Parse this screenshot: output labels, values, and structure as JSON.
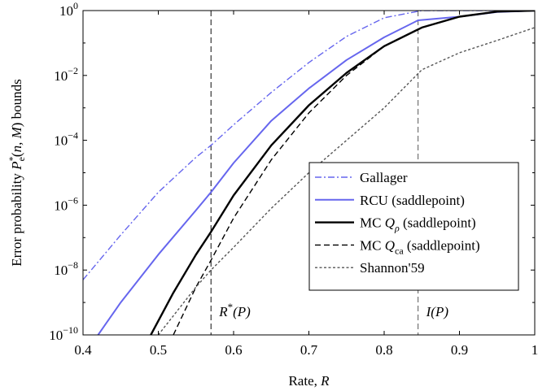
{
  "chart_data": {
    "type": "line",
    "xlabel": "Rate, R",
    "ylabel": "Error probability P*e(n, M) bounds",
    "xlim": [
      0.4,
      1.0
    ],
    "ylim": [
      1e-10,
      1
    ],
    "yscale": "log",
    "grid": false,
    "legend_position": "bottom-right",
    "x_ticks": [
      "0.4",
      "0.5",
      "0.6",
      "0.7",
      "0.8",
      "0.9",
      "1"
    ],
    "y_ticks": [
      {
        "base": "10",
        "exp": "0"
      },
      {
        "base": "10",
        "exp": "−2"
      },
      {
        "base": "10",
        "exp": "−4"
      },
      {
        "base": "10",
        "exp": "−6"
      },
      {
        "base": "10",
        "exp": "−8"
      },
      {
        "base": "10",
        "exp": "−10"
      }
    ],
    "series": [
      {
        "name": "Gallager",
        "color": "#6666ee",
        "dash": "dashdot",
        "x": [
          0.4,
          0.45,
          0.5,
          0.55,
          0.57,
          0.6,
          0.65,
          0.7,
          0.75,
          0.8,
          0.85,
          0.9,
          1.0
        ],
        "y": [
          5e-09,
          1.2e-07,
          2.5e-06,
          3e-05,
          7e-05,
          0.0003,
          0.003,
          0.025,
          0.16,
          0.6,
          1,
          1,
          1
        ]
      },
      {
        "name": "RCU (saddlepoint)",
        "color": "#6666ee",
        "dash": "solid",
        "x": [
          0.42,
          0.45,
          0.5,
          0.55,
          0.57,
          0.6,
          0.65,
          0.7,
          0.75,
          0.8,
          0.845,
          0.9,
          0.95,
          1.0
        ],
        "y": [
          1e-10,
          1e-09,
          3e-08,
          7e-07,
          2.5e-06,
          2e-05,
          0.0004,
          0.004,
          0.03,
          0.15,
          0.5,
          0.65,
          0.9,
          1
        ]
      },
      {
        "name": "MC Qρ (saddlepoint)",
        "color": "#000000",
        "dash": "solid",
        "x": [
          0.49,
          0.52,
          0.55,
          0.57,
          0.6,
          0.65,
          0.7,
          0.75,
          0.8,
          0.85,
          0.9,
          0.95,
          1.0
        ],
        "y": [
          1e-10,
          2e-09,
          3e-08,
          1.5e-07,
          2e-06,
          7e-05,
          0.0012,
          0.012,
          0.08,
          0.3,
          0.65,
          0.93,
          1
        ]
      },
      {
        "name": "MC Qca (saddlepoint)",
        "color": "#000000",
        "dash": "dashed",
        "x": [
          0.52,
          0.55,
          0.57,
          0.6,
          0.65,
          0.7,
          0.75,
          0.8,
          0.85,
          0.9,
          0.95,
          1.0
        ],
        "y": [
          1e-10,
          3e-09,
          2e-08,
          4e-07,
          2.5e-05,
          0.0007,
          0.01,
          0.08,
          0.3,
          0.65,
          0.93,
          1
        ]
      },
      {
        "name": "Shannon'59",
        "color": "#555555",
        "dash": "dotted",
        "x": [
          0.5,
          0.55,
          0.57,
          0.6,
          0.65,
          0.7,
          0.75,
          0.8,
          0.85,
          0.9,
          0.95,
          1.0
        ],
        "y": [
          1e-10,
          3e-09,
          1e-08,
          5e-08,
          8e-07,
          1e-05,
          0.0001,
          0.001,
          0.015,
          0.05,
          0.12,
          0.3
        ]
      }
    ],
    "vertical_markers": [
      {
        "label": "R*(P)",
        "x": 0.57,
        "color": "#222222"
      },
      {
        "label": "I(P)",
        "x": 0.845,
        "color": "#666666"
      }
    ]
  }
}
